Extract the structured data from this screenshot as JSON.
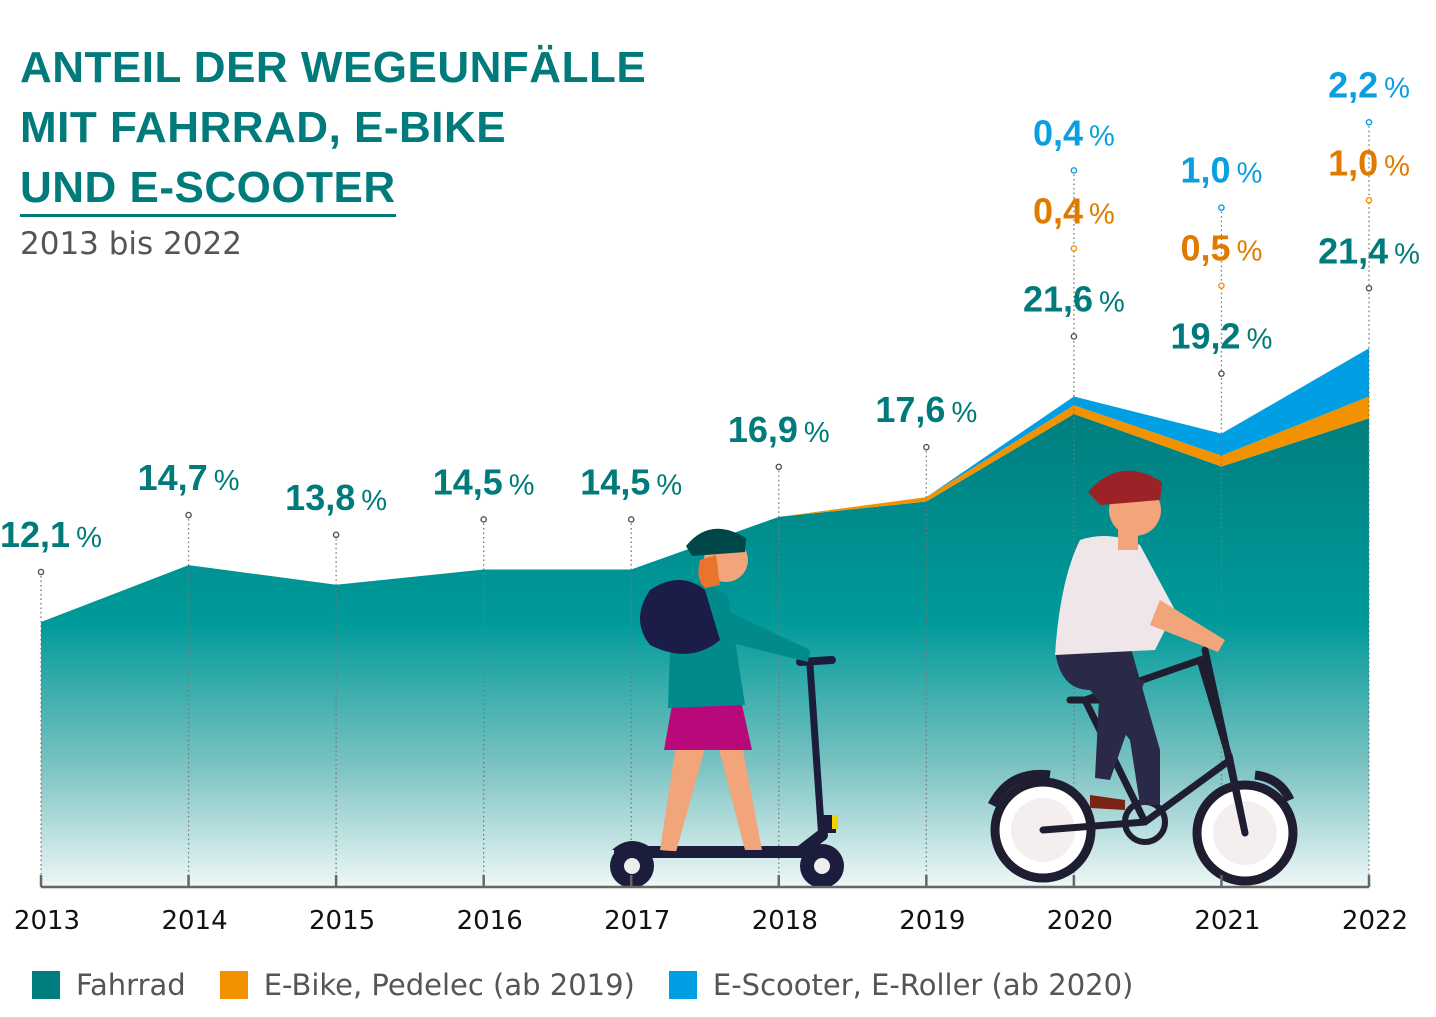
{
  "title": {
    "line1": "ANTEIL DER WEGEUNFÄLLE",
    "line2": "MIT FAHRRAD, E-BIKE",
    "line3": "UND E-SCOOTER"
  },
  "subtitle": "2013 bis 2022",
  "chart_data": {
    "type": "area",
    "stacked": true,
    "title": "ANTEIL DER WEGEUNFÄLLE MIT FAHRRAD, E-BIKE UND E-SCOOTER",
    "subtitle": "2013 bis 2022",
    "unit": "%",
    "categories": [
      "2013",
      "2014",
      "2015",
      "2016",
      "2017",
      "2018",
      "2019",
      "2020",
      "2021",
      "2022"
    ],
    "ylim": [
      0,
      26
    ],
    "grid": false,
    "legend_placement": "bottom",
    "series": [
      {
        "name": "Fahrrad",
        "color": "#007d7e",
        "values": [
          12.1,
          14.7,
          13.8,
          14.5,
          14.5,
          16.9,
          17.6,
          21.6,
          19.2,
          21.4
        ],
        "labels": [
          "12,1",
          "14,7",
          "13,8",
          "14,5",
          "14,5",
          "16,9",
          "17,6",
          "21,6",
          "19,2",
          "21,4"
        ]
      },
      {
        "name": "E-Bike, Pedelec (ab 2019)",
        "color": "#f39200",
        "values": [
          null,
          null,
          null,
          null,
          null,
          null,
          0.2,
          0.4,
          0.5,
          1.0
        ],
        "labels": [
          null,
          null,
          null,
          null,
          null,
          null,
          null,
          "0,4",
          "0,5",
          "1,0"
        ]
      },
      {
        "name": "E-Scooter, E-Roller (ab 2020)",
        "color": "#009fe3",
        "values": [
          null,
          null,
          null,
          null,
          null,
          null,
          null,
          0.4,
          1.0,
          2.2
        ],
        "labels": [
          null,
          null,
          null,
          null,
          null,
          null,
          null,
          "0,4",
          "1,0",
          "2,2"
        ]
      }
    ]
  },
  "legend": [
    {
      "label": "Fahrrad",
      "color": "#007d7e"
    },
    {
      "label": "E-Bike, Pedelec (ab 2019)",
      "color": "#f39200"
    },
    {
      "label": "E-Scooter, E-Roller (ab 2020)",
      "color": "#009fe3"
    }
  ],
  "label_colors": {
    "Fahrrad": "#007a7a",
    "E-Bike": "#e07b00",
    "E-Scooter": "#0a9fe0"
  },
  "percent_sign": "%"
}
